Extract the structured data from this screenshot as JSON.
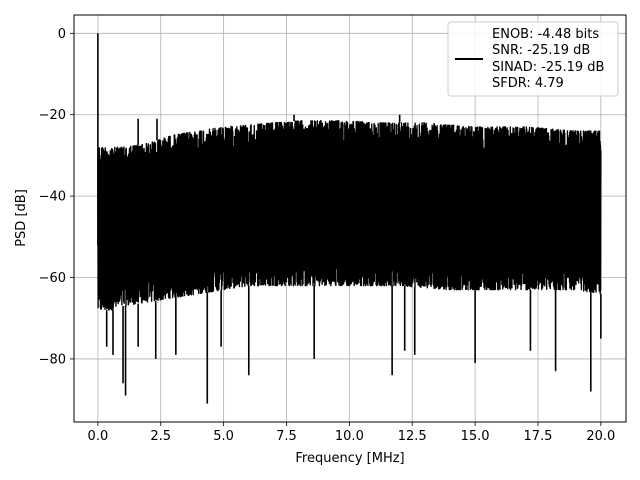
{
  "chart_data": {
    "type": "line",
    "xlabel": "Frequency [MHz]",
    "ylabel": "PSD [dB]",
    "xlim": [
      -0.95,
      21.0
    ],
    "ylim": [
      -95.5,
      4.5
    ],
    "xticks": [
      0.0,
      2.5,
      5.0,
      7.5,
      10.0,
      12.5,
      15.0,
      17.5,
      20.0
    ],
    "xtick_labels": [
      "0.0",
      "2.5",
      "5.0",
      "7.5",
      "10.0",
      "12.5",
      "15.0",
      "17.5",
      "20.0"
    ],
    "yticks": [
      0,
      -20,
      -40,
      -60,
      -80
    ],
    "ytick_labels": [
      "0",
      "−20",
      "−40",
      "−60",
      "−80"
    ],
    "grid": true,
    "legend_position": "top-right",
    "series": [
      {
        "color": "#000000",
        "upper_envelope": {
          "x": [
            0.0,
            0.5,
            1.0,
            2.0,
            3.0,
            4.0,
            5.0,
            6.0,
            7.0,
            8.0,
            9.0,
            10.0,
            11.0,
            12.0,
            13.0,
            14.0,
            15.0,
            16.0,
            17.0,
            18.0,
            19.0,
            20.0
          ],
          "y": [
            -28,
            -28,
            -28,
            -27,
            -25,
            -24,
            -23,
            -22.5,
            -22,
            -21.5,
            -21.5,
            -21.5,
            -22,
            -22,
            -22,
            -22.5,
            -23,
            -23,
            -23,
            -23.5,
            -24,
            -24
          ]
        },
        "lower_envelope": {
          "x": [
            0.0,
            0.5,
            1.0,
            2.0,
            3.0,
            4.0,
            5.0,
            6.0,
            7.0,
            8.0,
            9.0,
            10.0,
            11.0,
            12.0,
            13.0,
            14.0,
            15.0,
            16.0,
            17.0,
            18.0,
            19.0,
            20.0
          ],
          "y": [
            -68,
            -68,
            -67,
            -66,
            -65,
            -64,
            -63,
            -62,
            -62,
            -62,
            -62,
            -62,
            -62,
            -62,
            -62.5,
            -63,
            -63,
            -63,
            -63,
            -63,
            -63,
            -64
          ]
        },
        "peaks": [
          {
            "x": 0.0,
            "y": 0.0
          },
          {
            "x": 1.6,
            "y": -21.0
          },
          {
            "x": 2.35,
            "y": -21.0
          },
          {
            "x": 7.8,
            "y": -20.0
          },
          {
            "x": 12.0,
            "y": -20.0
          }
        ],
        "dips": [
          {
            "x": 0.35,
            "y": -77
          },
          {
            "x": 0.6,
            "y": -79
          },
          {
            "x": 1.0,
            "y": -86
          },
          {
            "x": 1.1,
            "y": -89
          },
          {
            "x": 1.6,
            "y": -77
          },
          {
            "x": 2.3,
            "y": -80
          },
          {
            "x": 3.1,
            "y": -79
          },
          {
            "x": 4.35,
            "y": -91
          },
          {
            "x": 4.9,
            "y": -77
          },
          {
            "x": 6.0,
            "y": -84
          },
          {
            "x": 8.6,
            "y": -80
          },
          {
            "x": 11.7,
            "y": -84
          },
          {
            "x": 12.2,
            "y": -78
          },
          {
            "x": 12.6,
            "y": -79
          },
          {
            "x": 15.0,
            "y": -81
          },
          {
            "x": 17.2,
            "y": -78
          },
          {
            "x": 18.2,
            "y": -83
          },
          {
            "x": 19.6,
            "y": -88
          },
          {
            "x": 20.0,
            "y": -75
          }
        ]
      }
    ]
  },
  "legend": {
    "lines": [
      "ENOB: -4.48 bits",
      "SNR: -25.19 dB",
      "SINAD: -25.19 dB",
      "SFDR: 4.79"
    ]
  }
}
